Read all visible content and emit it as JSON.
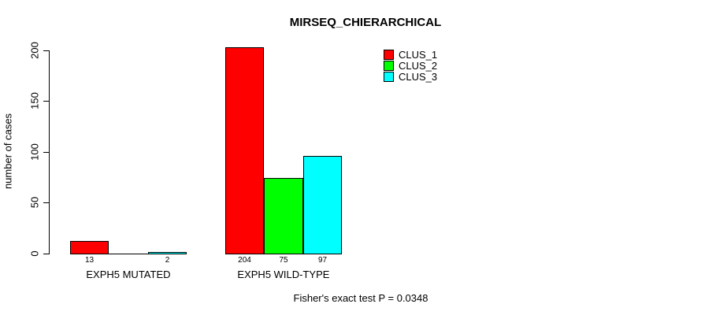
{
  "chart_data": {
    "type": "bar",
    "title": "MIRSEQ_CHIERARCHICAL",
    "ylabel": "number of cases",
    "xlabel": "",
    "ylim": [
      0,
      200
    ],
    "yticks": [
      0,
      50,
      100,
      150,
      200
    ],
    "grid": false,
    "background": "#ffffff",
    "categories": [
      "EXPH5 MUTATED",
      "EXPH5 WILD-TYPE"
    ],
    "series": [
      {
        "name": "CLUS_1",
        "color": "#ff0000",
        "values": [
          13,
          204
        ]
      },
      {
        "name": "CLUS_2",
        "color": "#00ff00",
        "values": [
          0,
          75
        ]
      },
      {
        "name": "CLUS_3",
        "color": "#00ffff",
        "values": [
          2,
          97
        ]
      }
    ],
    "bar_value_labels": [
      [
        "13",
        "",
        "2"
      ],
      [
        "204",
        "75",
        "97"
      ]
    ],
    "legend_position": "top-right",
    "annotation": "Fisher's exact test P = 0.0348"
  }
}
